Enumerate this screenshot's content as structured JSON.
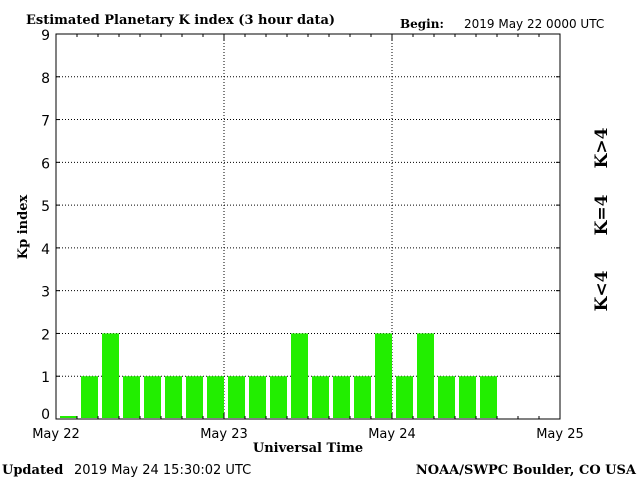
{
  "header": {
    "title": "Estimated Planetary K index (3 hour data)",
    "begin_label": "Begin:",
    "begin_value": "2019 May 22 0000 UTC"
  },
  "footer": {
    "updated_label": "Updated",
    "updated_value": "2019 May 24 15:30:02 UTC",
    "source": "NOAA/SWPC Boulder, CO USA"
  },
  "legend": [
    {
      "label": "K>4",
      "color": "#ff2a00"
    },
    {
      "label": "K=4",
      "color": "#ffd400"
    },
    {
      "label": "K<4",
      "color": "#22ee00"
    }
  ],
  "chart_data": {
    "type": "bar",
    "title": "Estimated Planetary K index (3 hour data)",
    "xlabel": "Universal Time",
    "ylabel": "Kp index",
    "ylim": [
      0,
      9
    ],
    "yticks": [
      0,
      1,
      2,
      3,
      4,
      5,
      6,
      7,
      8,
      9
    ],
    "x_tick_labels": [
      "May 22",
      "May 23",
      "May 24",
      "May 25"
    ],
    "days": 3,
    "bars_per_day": 8,
    "grid": true,
    "bar_color": "#22ee00",
    "values": [
      0.07,
      1,
      2,
      1,
      1,
      1,
      1,
      1,
      1,
      1,
      1,
      2,
      1,
      1,
      1,
      2,
      1,
      2,
      1,
      1,
      1
    ]
  }
}
